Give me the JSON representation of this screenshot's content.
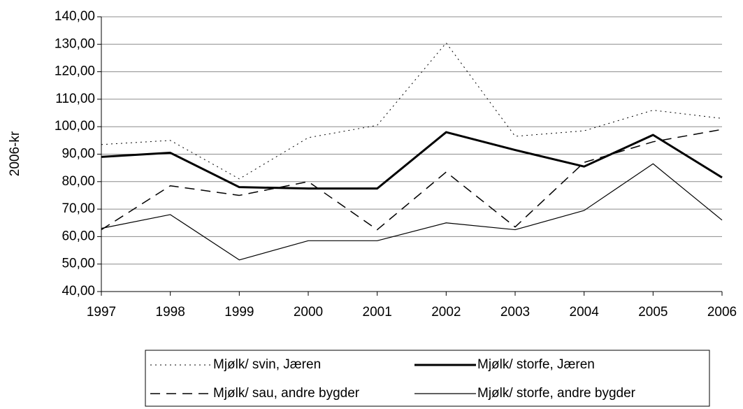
{
  "chart_data": {
    "type": "line",
    "ylabel": "2006-kr",
    "x": [
      1997,
      1998,
      1999,
      2000,
      2001,
      2002,
      2003,
      2004,
      2005,
      2006
    ],
    "xlim": [
      1997,
      2006
    ],
    "xticks": [
      1997,
      1998,
      1999,
      2000,
      2001,
      2002,
      2003,
      2004,
      2005,
      2006
    ],
    "ylim": [
      40,
      140
    ],
    "yticks": [
      {
        "value": 40,
        "label": "40,00"
      },
      {
        "value": 50,
        "label": "50,00"
      },
      {
        "value": 60,
        "label": "60,00"
      },
      {
        "value": 70,
        "label": "70,00"
      },
      {
        "value": 80,
        "label": "80,00"
      },
      {
        "value": 90,
        "label": "90,00"
      },
      {
        "value": 100,
        "label": "100,00"
      },
      {
        "value": 110,
        "label": "110,00"
      },
      {
        "value": 120,
        "label": "120,00"
      },
      {
        "value": 130,
        "label": "130,00"
      },
      {
        "value": 140,
        "label": "140,00"
      }
    ],
    "grid": true,
    "legend": "bottom",
    "series": [
      {
        "name": "Mjølk/ svin, Jæren",
        "color": "#000000",
        "style": "dotted",
        "linewidth": 1,
        "values": [
          93.5,
          95,
          81,
          96,
          100.5,
          130.5,
          96.5,
          98.5,
          106,
          103
        ]
      },
      {
        "name": "Mjølk/ storfe, Jæren",
        "color": "#000000",
        "style": "solid",
        "linewidth": 3,
        "values": [
          89,
          90.5,
          78,
          77.5,
          77.5,
          98,
          91.5,
          85.5,
          97,
          81.5
        ]
      },
      {
        "name": "Mjølk/ sau, andre bygder",
        "color": "#000000",
        "style": "dashed",
        "linewidth": 1.5,
        "values": [
          62.5,
          78.5,
          75,
          80,
          62.5,
          83.5,
          63.5,
          87,
          94.5,
          99
        ]
      },
      {
        "name": "Mjølk/ storfe, andre bygder",
        "color": "#000000",
        "style": "solid",
        "linewidth": 1.2,
        "values": [
          63,
          68,
          51.5,
          58.5,
          58.5,
          65,
          62.5,
          69.5,
          86.5,
          66
        ]
      }
    ]
  }
}
